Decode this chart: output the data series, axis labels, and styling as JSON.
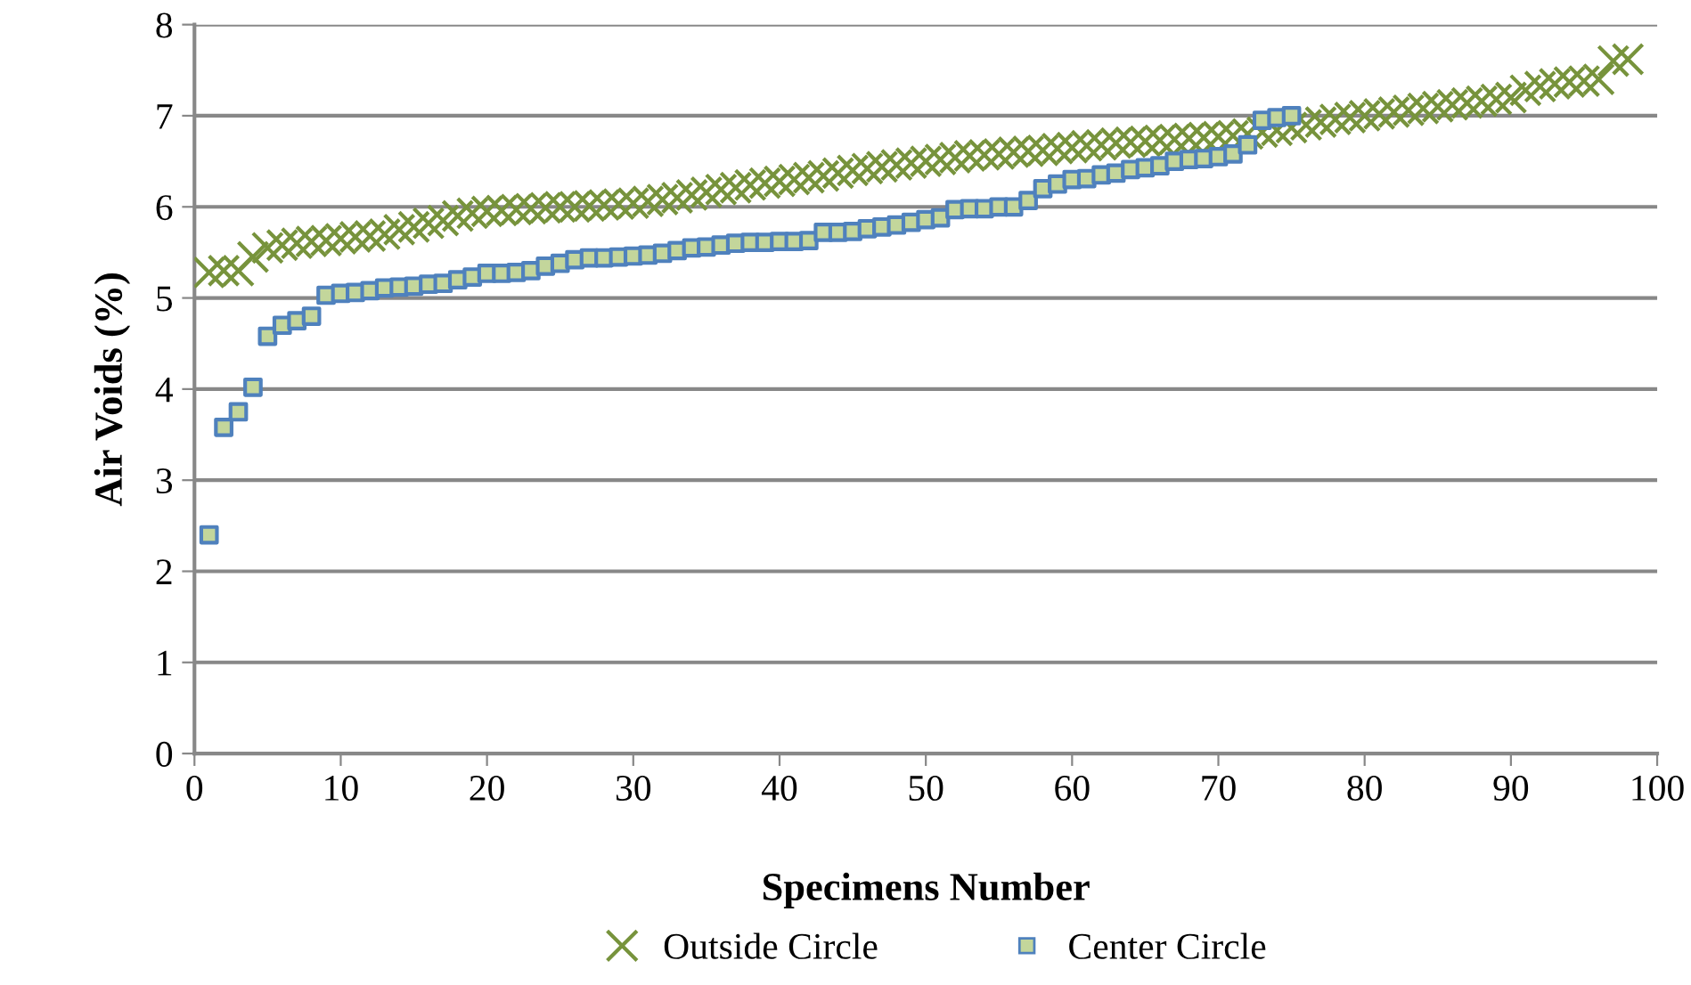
{
  "chart_data": {
    "type": "scatter",
    "xlabel": "Specimens Number",
    "ylabel": "Air Voids (%)",
    "xlim": [
      0,
      100
    ],
    "xticks": [
      0,
      10,
      20,
      30,
      40,
      50,
      60,
      70,
      80,
      90,
      100
    ],
    "ylim": [
      0,
      8
    ],
    "yticks": [
      0,
      1,
      2,
      3,
      4,
      5,
      6,
      7,
      8
    ],
    "grid": "y",
    "legend": "bottom",
    "series": [
      {
        "name": "Outside Circle",
        "color": "#77933c",
        "marker": "cross",
        "x": [
          1,
          2,
          3,
          4,
          5,
          6,
          7,
          8,
          9,
          10,
          11,
          12,
          13,
          14,
          15,
          16,
          17,
          18,
          19,
          20,
          21,
          22,
          23,
          24,
          25,
          26,
          27,
          28,
          29,
          30,
          31,
          32,
          33,
          34,
          35,
          36,
          37,
          38,
          39,
          40,
          41,
          42,
          43,
          44,
          45,
          46,
          47,
          48,
          49,
          50,
          51,
          52,
          53,
          54,
          55,
          56,
          57,
          58,
          59,
          60,
          61,
          62,
          63,
          64,
          65,
          66,
          67,
          68,
          69,
          70,
          71,
          72,
          73,
          74,
          75,
          76,
          77,
          78,
          79,
          80,
          81,
          82,
          83,
          84,
          85,
          86,
          87,
          88,
          89,
          90,
          91,
          92,
          93,
          94,
          95,
          96,
          97,
          98
        ],
        "values": [
          5.28,
          5.3,
          5.3,
          5.45,
          5.55,
          5.58,
          5.6,
          5.62,
          5.63,
          5.65,
          5.67,
          5.68,
          5.7,
          5.75,
          5.78,
          5.82,
          5.85,
          5.9,
          5.93,
          5.95,
          5.96,
          5.97,
          5.98,
          5.99,
          6.0,
          6.0,
          6.01,
          6.02,
          6.03,
          6.04,
          6.06,
          6.08,
          6.1,
          6.13,
          6.16,
          6.19,
          6.21,
          6.24,
          6.26,
          6.28,
          6.3,
          6.32,
          6.34,
          6.37,
          6.4,
          6.42,
          6.44,
          6.46,
          6.48,
          6.5,
          6.52,
          6.54,
          6.56,
          6.57,
          6.58,
          6.6,
          6.61,
          6.62,
          6.64,
          6.65,
          6.67,
          6.68,
          6.7,
          6.71,
          6.72,
          6.73,
          6.74,
          6.75,
          6.76,
          6.77,
          6.78,
          6.8,
          6.82,
          6.84,
          6.87,
          6.9,
          6.93,
          6.96,
          6.98,
          7.0,
          7.02,
          7.04,
          7.06,
          7.08,
          7.1,
          7.12,
          7.14,
          7.16,
          7.18,
          7.2,
          7.28,
          7.32,
          7.35,
          7.37,
          7.38,
          7.4,
          7.6,
          7.62
        ]
      },
      {
        "name": "Center Circle",
        "color": "#4f81bd",
        "marker": "square",
        "x": [
          1,
          2,
          3,
          4,
          5,
          6,
          7,
          8,
          9,
          10,
          11,
          12,
          13,
          14,
          15,
          16,
          17,
          18,
          19,
          20,
          21,
          22,
          23,
          24,
          25,
          26,
          27,
          28,
          29,
          30,
          31,
          32,
          33,
          34,
          35,
          36,
          37,
          38,
          39,
          40,
          41,
          42,
          43,
          44,
          45,
          46,
          47,
          48,
          49,
          50,
          51,
          52,
          53,
          54,
          55,
          56,
          57,
          58,
          59,
          60,
          61,
          62,
          63,
          64,
          65,
          66,
          67,
          68,
          69,
          70,
          71,
          72,
          73,
          74,
          75
        ],
        "values": [
          2.4,
          3.58,
          3.75,
          4.02,
          4.58,
          4.7,
          4.75,
          4.8,
          5.03,
          5.05,
          5.06,
          5.08,
          5.11,
          5.12,
          5.13,
          5.15,
          5.16,
          5.2,
          5.23,
          5.27,
          5.27,
          5.28,
          5.3,
          5.35,
          5.38,
          5.42,
          5.44,
          5.44,
          5.45,
          5.46,
          5.47,
          5.49,
          5.52,
          5.55,
          5.56,
          5.58,
          5.6,
          5.61,
          5.61,
          5.62,
          5.62,
          5.63,
          5.72,
          5.72,
          5.73,
          5.76,
          5.78,
          5.8,
          5.83,
          5.86,
          5.88,
          5.97,
          5.98,
          5.98,
          6.0,
          6.0,
          6.07,
          6.2,
          6.25,
          6.3,
          6.31,
          6.35,
          6.37,
          6.41,
          6.43,
          6.45,
          6.5,
          6.52,
          6.53,
          6.55,
          6.58,
          6.68,
          6.95,
          6.98,
          7.0
        ]
      }
    ]
  }
}
